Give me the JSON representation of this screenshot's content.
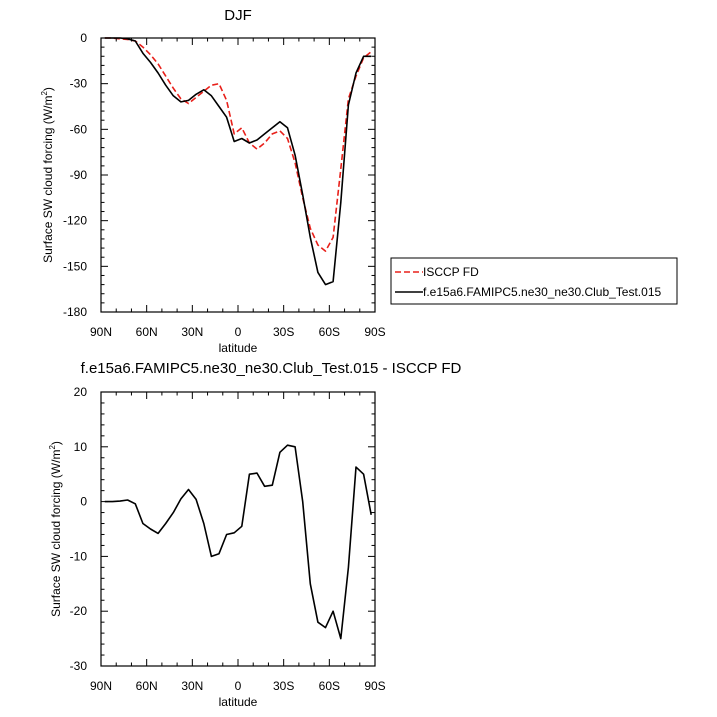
{
  "chart_data": [
    {
      "type": "line",
      "title": "DJF",
      "xlabel": "latitude",
      "ylabel_main": "Surface SW cloud forcing (W/m",
      "ylabel_sup": "2",
      "ylabel_end": ")",
      "x_ticks": [
        -90,
        -60,
        -30,
        0,
        30,
        60,
        90
      ],
      "x_tick_labels": [
        "90N",
        "60N",
        "30N",
        "0",
        "30S",
        "60S",
        "90S"
      ],
      "xlim": [
        -90,
        90
      ],
      "ylim": [
        -180,
        0
      ],
      "y_ticks": [
        0,
        -30,
        -60,
        -90,
        -120,
        -150,
        -180
      ],
      "y_tick_labels": [
        "0",
        "-30",
        "-60",
        "-90",
        "-120",
        "-150",
        "-180"
      ],
      "legend_position": "right",
      "series": [
        {
          "name": "ISCCP FD",
          "color": "#e8201a",
          "dash": true,
          "x": [
            -87.5,
            -82.5,
            -77.5,
            -72.5,
            -67.5,
            -62.5,
            -57.5,
            -52.5,
            -47.5,
            -42.5,
            -37.5,
            -32.5,
            -27.5,
            -22.5,
            -17.5,
            -12.5,
            -7.5,
            -2.5,
            2.5,
            7.5,
            12.5,
            17.5,
            22.5,
            27.5,
            32.5,
            37.5,
            42.5,
            47.5,
            52.5,
            57.5,
            62.5,
            67.5,
            72.5,
            77.5,
            82.5,
            87.5
          ],
          "y": [
            0,
            0,
            -0.5,
            -1,
            -2,
            -6,
            -11,
            -17,
            -25,
            -33,
            -40,
            -43,
            -39,
            -35,
            -31,
            -30,
            -41,
            -63,
            -59,
            -69,
            -73,
            -69,
            -63,
            -61,
            -66,
            -82,
            -105,
            -125,
            -136,
            -140,
            -131,
            -86,
            -40,
            -25,
            -13,
            -9
          ]
        },
        {
          "name": "f.e15a6.FAMIPC5.ne30_ne30.Club_Test.015",
          "color": "#000000",
          "dash": false,
          "x": [
            -87.5,
            -82.5,
            -77.5,
            -72.5,
            -67.5,
            -62.5,
            -57.5,
            -52.5,
            -47.5,
            -42.5,
            -37.5,
            -32.5,
            -27.5,
            -22.5,
            -17.5,
            -12.5,
            -7.5,
            -2.5,
            2.5,
            7.5,
            12.5,
            17.5,
            22.5,
            27.5,
            32.5,
            37.5,
            42.5,
            47.5,
            52.5,
            57.5,
            62.5,
            67.5,
            72.5,
            77.5,
            82.5,
            87.5
          ],
          "y": [
            0,
            0,
            0,
            -0.5,
            -2,
            -10,
            -16,
            -23,
            -31,
            -38,
            -42,
            -41,
            -37,
            -34,
            -38,
            -45,
            -52,
            -68,
            -66,
            -69,
            -67,
            -63,
            -59,
            -55,
            -59,
            -77,
            -103,
            -131,
            -154,
            -162,
            -160,
            -108,
            -44,
            -23,
            -12,
            -12
          ]
        }
      ]
    },
    {
      "type": "line",
      "title": "f.e15a6.FAMIPC5.ne30_ne30.Club_Test.015 - ISCCP FD",
      "xlabel": "latitude",
      "ylabel_main": "Surface SW cloud forcing (W/m",
      "ylabel_sup": "2",
      "ylabel_end": ")",
      "x_ticks": [
        -90,
        -60,
        -30,
        0,
        30,
        60,
        90
      ],
      "x_tick_labels": [
        "90N",
        "60N",
        "30N",
        "0",
        "30S",
        "60S",
        "90S"
      ],
      "xlim": [
        -90,
        90
      ],
      "ylim": [
        -30,
        20
      ],
      "y_ticks": [
        20,
        10,
        0,
        -10,
        -20,
        -30
      ],
      "y_tick_labels": [
        "20",
        "10",
        "0",
        "-10",
        "-20",
        "-30"
      ],
      "series": [
        {
          "color": "#000000",
          "dash": false,
          "x": [
            -87.5,
            -82.5,
            -77.5,
            -72.5,
            -67.5,
            -62.5,
            -57.5,
            -52.5,
            -47.5,
            -42.5,
            -37.5,
            -32.5,
            -27.5,
            -22.5,
            -17.5,
            -12.5,
            -7.5,
            -2.5,
            2.5,
            7.5,
            12.5,
            17.5,
            22.5,
            27.5,
            32.5,
            37.5,
            42.5,
            47.5,
            52.5,
            57.5,
            62.5,
            67.5,
            72.5,
            77.5,
            82.5,
            87.5
          ],
          "y": [
            0,
            0,
            0.1,
            0.3,
            -0.4,
            -4,
            -5,
            -5.8,
            -4,
            -2,
            0.5,
            2.2,
            0.4,
            -4,
            -10,
            -9.5,
            -6,
            -5.7,
            -4.5,
            5,
            5.2,
            2.8,
            3,
            9,
            10.3,
            10,
            0,
            -15,
            -22,
            -23,
            -20,
            -25,
            -12,
            6.3,
            5,
            -2.4
          ]
        }
      ]
    }
  ]
}
